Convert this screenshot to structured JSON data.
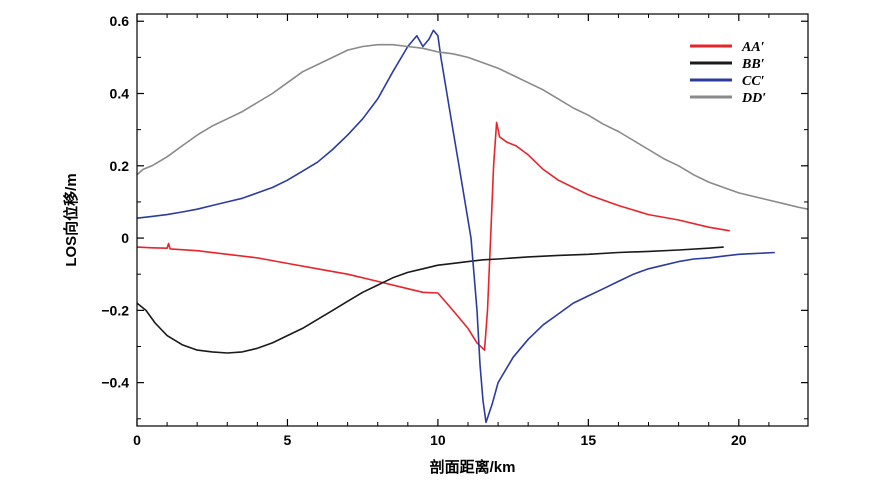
{
  "chart_data": {
    "type": "line",
    "title": "",
    "xlabel": "剖面距离/km",
    "ylabel": "LOS向位移/m",
    "xlim": [
      0,
      22.3
    ],
    "ylim": [
      -0.52,
      0.62
    ],
    "x_ticks": [
      0,
      5,
      10,
      15,
      20
    ],
    "y_ticks": [
      -0.4,
      -0.2,
      0,
      0.2,
      0.4,
      0.6
    ],
    "x_tick_labels": [
      "0",
      "5",
      "10",
      "15",
      "20"
    ],
    "y_tick_labels": [
      "−0.4",
      "−0.2",
      "0",
      "0.2",
      "0.4",
      "0.6"
    ],
    "grid": false,
    "legend_position": "top-right",
    "series": [
      {
        "name": "AA′",
        "color": "#e8242a",
        "points": [
          [
            0,
            -0.025
          ],
          [
            0.5,
            -0.027
          ],
          [
            1.0,
            -0.028
          ],
          [
            1.05,
            -0.015
          ],
          [
            1.1,
            -0.03
          ],
          [
            2,
            -0.035
          ],
          [
            3,
            -0.045
          ],
          [
            4,
            -0.055
          ],
          [
            5,
            -0.07
          ],
          [
            6,
            -0.085
          ],
          [
            7,
            -0.1
          ],
          [
            8,
            -0.12
          ],
          [
            9,
            -0.14
          ],
          [
            9.5,
            -0.15
          ],
          [
            10,
            -0.152
          ],
          [
            10.5,
            -0.2
          ],
          [
            11,
            -0.25
          ],
          [
            11.3,
            -0.29
          ],
          [
            11.55,
            -0.31
          ],
          [
            11.65,
            -0.2
          ],
          [
            11.75,
            0.0
          ],
          [
            11.85,
            0.2
          ],
          [
            11.95,
            0.32
          ],
          [
            12.05,
            0.28
          ],
          [
            12.3,
            0.265
          ],
          [
            12.6,
            0.255
          ],
          [
            13,
            0.23
          ],
          [
            13.5,
            0.19
          ],
          [
            14,
            0.16
          ],
          [
            14.5,
            0.14
          ],
          [
            15,
            0.12
          ],
          [
            16,
            0.09
          ],
          [
            17,
            0.065
          ],
          [
            18,
            0.05
          ],
          [
            19,
            0.03
          ],
          [
            19.7,
            0.02
          ]
        ]
      },
      {
        "name": "BB′",
        "color": "#1a1a1a",
        "points": [
          [
            0,
            -0.18
          ],
          [
            0.3,
            -0.2
          ],
          [
            0.6,
            -0.235
          ],
          [
            1,
            -0.27
          ],
          [
            1.5,
            -0.295
          ],
          [
            2,
            -0.31
          ],
          [
            2.5,
            -0.315
          ],
          [
            3,
            -0.318
          ],
          [
            3.5,
            -0.315
          ],
          [
            4,
            -0.305
          ],
          [
            4.5,
            -0.29
          ],
          [
            5,
            -0.27
          ],
          [
            5.5,
            -0.25
          ],
          [
            6,
            -0.225
          ],
          [
            6.5,
            -0.2
          ],
          [
            7,
            -0.175
          ],
          [
            7.5,
            -0.15
          ],
          [
            8,
            -0.13
          ],
          [
            8.5,
            -0.11
          ],
          [
            9,
            -0.095
          ],
          [
            9.5,
            -0.085
          ],
          [
            10,
            -0.075
          ],
          [
            10.5,
            -0.07
          ],
          [
            11,
            -0.065
          ],
          [
            11.5,
            -0.06
          ],
          [
            12,
            -0.058
          ],
          [
            13,
            -0.052
          ],
          [
            14,
            -0.048
          ],
          [
            15,
            -0.045
          ],
          [
            16,
            -0.04
          ],
          [
            17,
            -0.037
          ],
          [
            18,
            -0.033
          ],
          [
            19,
            -0.028
          ],
          [
            19.5,
            -0.025
          ]
        ]
      },
      {
        "name": "CC′",
        "color": "#2b3c9e",
        "points": [
          [
            0,
            0.055
          ],
          [
            0.5,
            0.06
          ],
          [
            1,
            0.065
          ],
          [
            1.5,
            0.072
          ],
          [
            2,
            0.08
          ],
          [
            2.5,
            0.09
          ],
          [
            3,
            0.1
          ],
          [
            3.5,
            0.11
          ],
          [
            4,
            0.125
          ],
          [
            4.5,
            0.14
          ],
          [
            5,
            0.16
          ],
          [
            5.5,
            0.185
          ],
          [
            6,
            0.21
          ],
          [
            6.5,
            0.245
          ],
          [
            7,
            0.285
          ],
          [
            7.5,
            0.33
          ],
          [
            8,
            0.385
          ],
          [
            8.5,
            0.46
          ],
          [
            9,
            0.53
          ],
          [
            9.3,
            0.56
          ],
          [
            9.5,
            0.53
          ],
          [
            9.7,
            0.55
          ],
          [
            9.85,
            0.575
          ],
          [
            10,
            0.56
          ],
          [
            10.1,
            0.5
          ],
          [
            10.3,
            0.4
          ],
          [
            10.5,
            0.3
          ],
          [
            10.7,
            0.2
          ],
          [
            10.9,
            0.1
          ],
          [
            11.1,
            0.0
          ],
          [
            11.2,
            -0.1
          ],
          [
            11.3,
            -0.2
          ],
          [
            11.4,
            -0.35
          ],
          [
            11.5,
            -0.45
          ],
          [
            11.6,
            -0.51
          ],
          [
            11.8,
            -0.46
          ],
          [
            12,
            -0.4
          ],
          [
            12.5,
            -0.33
          ],
          [
            13,
            -0.28
          ],
          [
            13.5,
            -0.24
          ],
          [
            14,
            -0.21
          ],
          [
            14.5,
            -0.18
          ],
          [
            15,
            -0.16
          ],
          [
            15.5,
            -0.14
          ],
          [
            16,
            -0.12
          ],
          [
            16.5,
            -0.1
          ],
          [
            17,
            -0.085
          ],
          [
            17.5,
            -0.075
          ],
          [
            18,
            -0.065
          ],
          [
            18.5,
            -0.058
          ],
          [
            19,
            -0.055
          ],
          [
            19.5,
            -0.05
          ],
          [
            20,
            -0.045
          ],
          [
            20.5,
            -0.043
          ],
          [
            21.2,
            -0.04
          ]
        ]
      },
      {
        "name": "DD′",
        "color": "#8a8a8a",
        "points": [
          [
            0,
            0.175
          ],
          [
            0.2,
            0.19
          ],
          [
            0.5,
            0.2
          ],
          [
            1,
            0.225
          ],
          [
            1.5,
            0.255
          ],
          [
            2,
            0.285
          ],
          [
            2.5,
            0.31
          ],
          [
            3,
            0.33
          ],
          [
            3.5,
            0.35
          ],
          [
            4,
            0.375
          ],
          [
            4.5,
            0.4
          ],
          [
            5,
            0.43
          ],
          [
            5.5,
            0.46
          ],
          [
            6,
            0.48
          ],
          [
            6.5,
            0.5
          ],
          [
            7,
            0.52
          ],
          [
            7.5,
            0.53
          ],
          [
            8,
            0.535
          ],
          [
            8.5,
            0.535
          ],
          [
            9,
            0.53
          ],
          [
            9.5,
            0.525
          ],
          [
            10,
            0.515
          ],
          [
            10.5,
            0.51
          ],
          [
            11,
            0.5
          ],
          [
            11.5,
            0.485
          ],
          [
            12,
            0.47
          ],
          [
            12.5,
            0.45
          ],
          [
            13,
            0.43
          ],
          [
            13.5,
            0.41
          ],
          [
            14,
            0.385
          ],
          [
            14.5,
            0.36
          ],
          [
            15,
            0.34
          ],
          [
            15.5,
            0.315
          ],
          [
            16,
            0.295
          ],
          [
            16.5,
            0.27
          ],
          [
            17,
            0.245
          ],
          [
            17.5,
            0.22
          ],
          [
            18,
            0.2
          ],
          [
            18.5,
            0.175
          ],
          [
            19,
            0.155
          ],
          [
            19.5,
            0.14
          ],
          [
            20,
            0.125
          ],
          [
            20.5,
            0.115
          ],
          [
            21,
            0.105
          ],
          [
            21.5,
            0.095
          ],
          [
            22,
            0.085
          ],
          [
            22.3,
            0.08
          ]
        ]
      }
    ]
  }
}
